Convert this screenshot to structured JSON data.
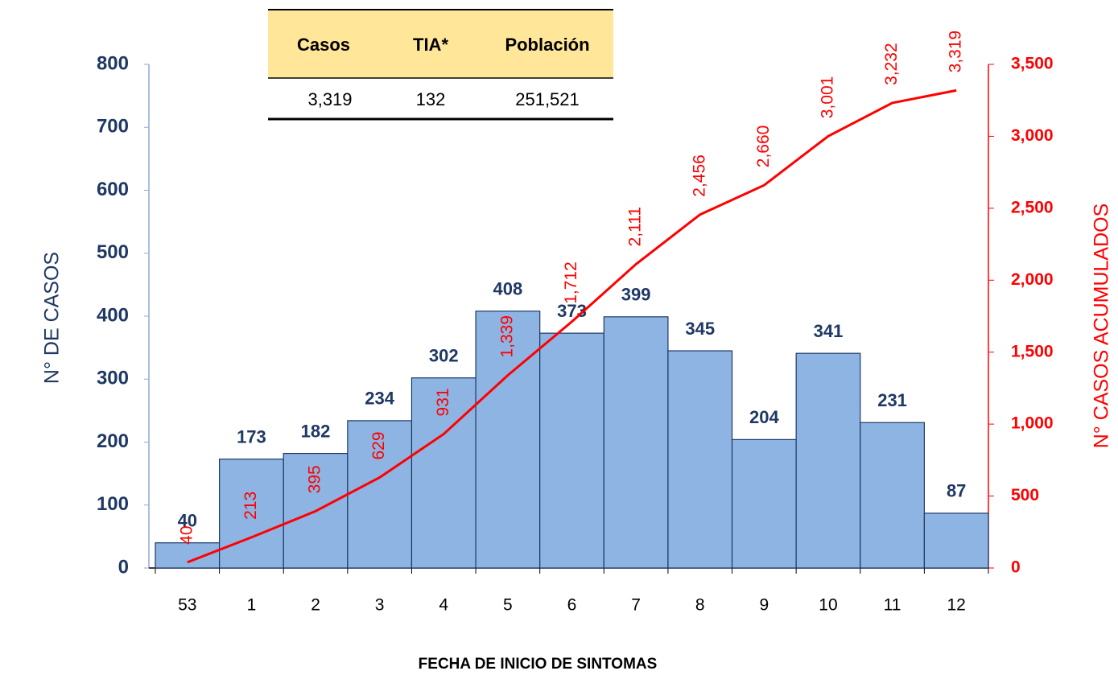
{
  "chart_data": {
    "type": "bar",
    "x_label": "FECHA DE INICIO DE SINTOMAS",
    "y_label": "N° DE CASOS",
    "y2_label": "N° CASOS ACUMULADOS",
    "categories": [
      "53",
      "1",
      "2",
      "3",
      "4",
      "5",
      "6",
      "7",
      "8",
      "9",
      "10",
      "11",
      "12"
    ],
    "series": [
      {
        "type": "bar",
        "color": "#8db4e2",
        "values": [
          40,
          173,
          182,
          234,
          302,
          408,
          373,
          399,
          345,
          204,
          341,
          231,
          87
        ]
      },
      {
        "type": "line",
        "axis": "y2",
        "color": "#ff0000",
        "values": [
          40,
          213,
          395,
          629,
          931,
          1339,
          1712,
          2111,
          2456,
          2660,
          3001,
          3232,
          3319
        ],
        "value_labels": [
          "40",
          "213",
          "395",
          "629",
          "931",
          "1,339",
          "1,712",
          "2,111",
          "2,456",
          "2,660",
          "3,001",
          "3,232",
          "3,319"
        ]
      }
    ],
    "ylim": [
      0,
      800
    ],
    "yticks": [
      0,
      100,
      200,
      300,
      400,
      500,
      600,
      700,
      800
    ],
    "y2lim": [
      0,
      3500
    ],
    "y2ticks": [
      0,
      500,
      {
        "value": 1000,
        "label": "1,000"
      },
      {
        "value": 1500,
        "label": "1,500"
      },
      {
        "value": 2000,
        "label": "2,000"
      },
      {
        "value": 2500,
        "label": "2,500"
      },
      {
        "value": 3000,
        "label": "3,000"
      },
      {
        "value": 3500,
        "label": "3,500"
      }
    ]
  },
  "table": {
    "headers": [
      "Casos",
      "TIA*",
      "Población"
    ],
    "rows": [
      [
        "3,319",
        "132",
        "251,521"
      ]
    ]
  }
}
